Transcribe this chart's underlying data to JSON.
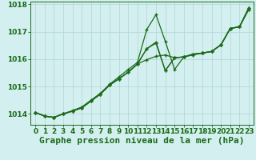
{
  "title": "Graphe pression niveau de la mer (hPa)",
  "background_color": "#d4efef",
  "grid_color": "#b0d4d4",
  "line_color": "#1a6b1a",
  "marker": "+",
  "xlim": [
    -0.5,
    23.5
  ],
  "ylim": [
    1013.6,
    1018.1
  ],
  "yticks": [
    1014,
    1015,
    1016,
    1017,
    1018
  ],
  "xticks": [
    0,
    1,
    2,
    3,
    4,
    5,
    6,
    7,
    8,
    9,
    10,
    11,
    12,
    13,
    14,
    15,
    16,
    17,
    18,
    19,
    20,
    21,
    22,
    23
  ],
  "series": [
    [
      1014.05,
      1013.92,
      1013.87,
      1014.0,
      1014.1,
      1014.22,
      1014.47,
      1014.72,
      1015.05,
      1015.28,
      1015.52,
      1015.82,
      1016.38,
      1016.58,
      1015.58,
      1016.05,
      1016.08,
      1016.18,
      1016.22,
      1016.28,
      1016.52,
      1017.12,
      1017.18,
      1017.88
    ],
    [
      1014.05,
      1013.92,
      1013.87,
      1014.0,
      1014.1,
      1014.22,
      1014.47,
      1014.72,
      1015.05,
      1015.28,
      1015.52,
      1015.82,
      1015.98,
      1016.1,
      1016.15,
      1016.05,
      1016.08,
      1016.18,
      1016.22,
      1016.28,
      1016.52,
      1017.12,
      1017.18,
      1017.82
    ],
    [
      1014.05,
      1013.92,
      1013.87,
      1014.0,
      1014.12,
      1014.25,
      1014.5,
      1014.75,
      1015.08,
      1015.35,
      1015.62,
      1015.88,
      1017.08,
      1017.62,
      1016.65,
      1015.62,
      1016.08,
      1016.15,
      1016.22,
      1016.28,
      1016.52,
      1017.12,
      1017.18,
      1017.82
    ],
    [
      1014.05,
      1013.92,
      1013.87,
      1014.0,
      1014.1,
      1014.22,
      1014.47,
      1014.72,
      1015.05,
      1015.28,
      1015.52,
      1015.82,
      1016.38,
      1016.62,
      1015.58,
      1016.05,
      1016.08,
      1016.18,
      1016.22,
      1016.28,
      1016.52,
      1017.12,
      1017.18,
      1017.88
    ]
  ],
  "title_fontsize": 8,
  "tick_fontsize": 6.5,
  "linewidth": 0.9,
  "markersize": 3.5,
  "markeredgewidth": 1.0
}
